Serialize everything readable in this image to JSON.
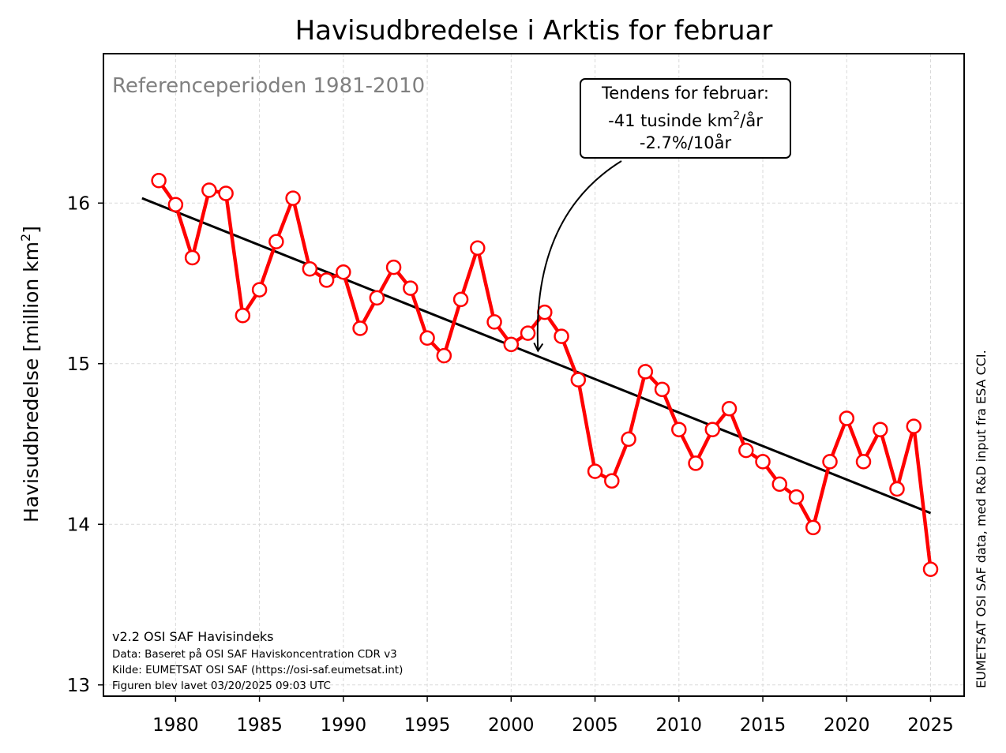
{
  "chart_data": {
    "type": "line",
    "title": "Havisudbredelse i Arktis for februar",
    "ylabel_main": "Havisudbredelse [million km",
    "ylabel_sup": "2",
    "ylabel_close": "]",
    "xlabel": "",
    "xlim": [
      1975.7,
      2027.0
    ],
    "ylim": [
      12.93,
      16.93
    ],
    "xticks": [
      1980,
      1985,
      1990,
      1995,
      2000,
      2005,
      2010,
      2015,
      2020,
      2025
    ],
    "yticks": [
      13,
      14,
      15,
      16
    ],
    "grid": true,
    "series": [
      {
        "color": "#ff0000",
        "marker": "open-circle",
        "x": [
          1979,
          1980,
          1981,
          1982,
          1983,
          1984,
          1985,
          1986,
          1987,
          1988,
          1989,
          1990,
          1991,
          1992,
          1993,
          1994,
          1995,
          1996,
          1997,
          1998,
          1999,
          2000,
          2001,
          2002,
          2003,
          2004,
          2005,
          2006,
          2007,
          2008,
          2009,
          2010,
          2011,
          2012,
          2013,
          2014,
          2015,
          2016,
          2017,
          2018,
          2019,
          2020,
          2021,
          2022,
          2023,
          2024,
          2025
        ],
        "y": [
          16.14,
          15.99,
          15.66,
          16.08,
          16.06,
          15.3,
          15.46,
          15.76,
          16.03,
          15.59,
          15.52,
          15.57,
          15.22,
          15.41,
          15.6,
          15.47,
          15.16,
          15.05,
          15.4,
          15.72,
          15.26,
          15.12,
          15.19,
          15.32,
          15.17,
          14.9,
          14.33,
          14.27,
          14.53,
          14.95,
          14.84,
          14.59,
          14.38,
          14.59,
          14.72,
          14.46,
          14.39,
          14.25,
          14.17,
          13.98,
          14.39,
          14.66,
          14.39,
          14.59,
          14.22,
          14.61,
          13.72
        ]
      },
      {
        "color": "#000000",
        "x": [
          1978,
          2025
        ],
        "y": [
          16.03,
          14.07
        ]
      }
    ],
    "annotation": {
      "line1": "Tendens for februar:",
      "line2_main": "-41 tusinde km",
      "line2_sup": "2",
      "line2_tail": "/år",
      "line3": "-2.7%/10år",
      "arrow_target": [
        2001.6,
        15.08
      ]
    },
    "reference_text": "Referenceperioden 1981-2010",
    "footnotes": [
      "v2.2 OSI SAF Havisindeks",
      "Data: Baseret på OSI SAF Haviskoncentration CDR v3",
      "Kilde: EUMETSAT OSI SAF (https://osi-saf.eumetsat.int)",
      "Figuren blev lavet 03/20/2025 09:03 UTC"
    ],
    "side_text": "EUMETSAT OSI SAF data, med R&D input fra ESA CCI."
  }
}
